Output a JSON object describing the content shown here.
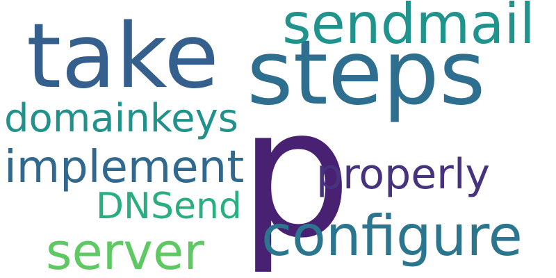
{
  "words": [
    {
      "key": "p",
      "text": "p",
      "color": "#482173"
    },
    {
      "key": "steps",
      "text": "steps",
      "color": "#2e6e8e"
    },
    {
      "key": "take",
      "text": "take",
      "color": "#355f8d"
    },
    {
      "key": "sendmail",
      "text": "sendmail",
      "color": "#20938c"
    },
    {
      "key": "configure",
      "text": "configure",
      "color": "#2b758e"
    },
    {
      "key": "domainkeys",
      "text": "domainkeys",
      "color": "#21918c"
    },
    {
      "key": "implement",
      "text": "implement",
      "color": "#31688e"
    },
    {
      "key": "properly",
      "text": "properly",
      "color": "#46327e"
    },
    {
      "key": "dnsend",
      "text": "DNSend",
      "color": "#29af7f"
    },
    {
      "key": "server",
      "text": "server",
      "color": "#5ec962"
    }
  ]
}
